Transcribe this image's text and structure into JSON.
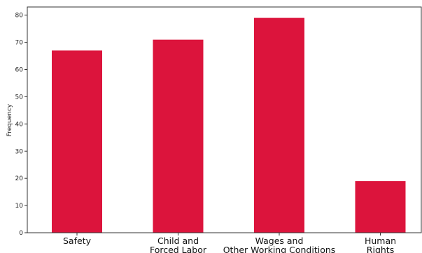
{
  "chart_data": {
    "type": "bar",
    "title": "",
    "xlabel": "",
    "ylabel": "Frequency",
    "categories": [
      [
        "Safety"
      ],
      [
        "Child and",
        "Forced Labor"
      ],
      [
        "Wages and",
        "Other Working Conditions"
      ],
      [
        "Human",
        "Rights"
      ]
    ],
    "values": [
      67,
      71,
      79,
      19
    ],
    "ylim": [
      0,
      83
    ],
    "yticks": [
      0,
      10,
      20,
      30,
      40,
      50,
      60,
      70,
      80
    ],
    "bar_color": "#DC143C",
    "grid": false,
    "legend": "none"
  }
}
